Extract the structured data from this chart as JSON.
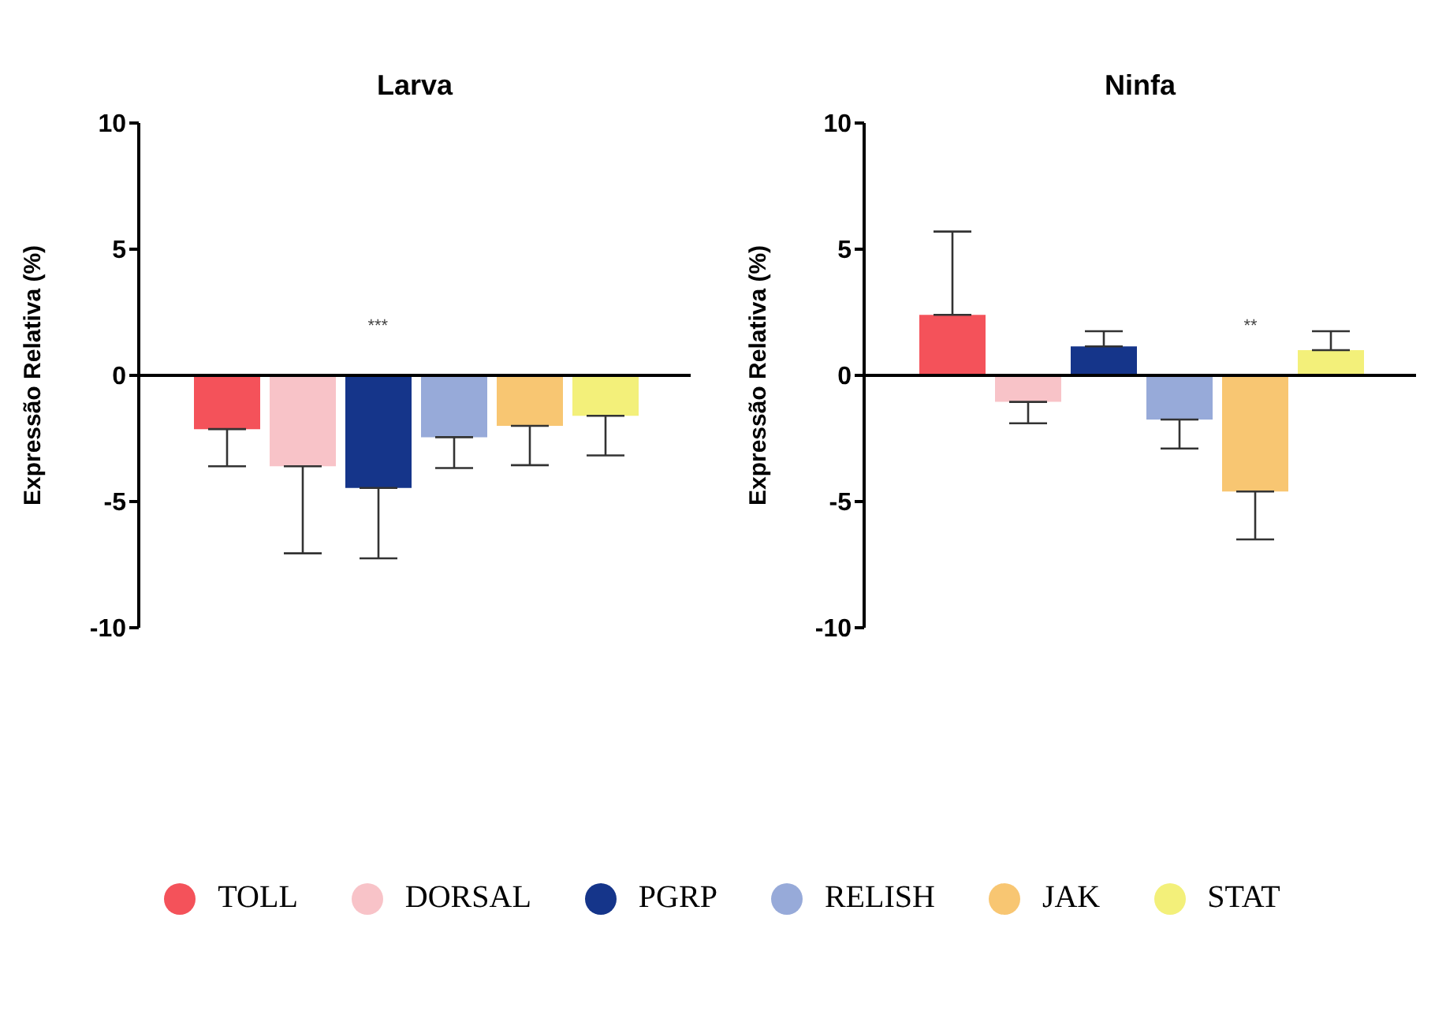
{
  "chart_data": [
    {
      "type": "bar",
      "title": "Larva",
      "ylabel": "Expressão Relativa (%)",
      "categories": [
        null
      ],
      "ylim": [
        -10,
        10
      ],
      "yticks": [
        -10,
        -5,
        0,
        5,
        10
      ],
      "legend": "bottom",
      "annotations": [
        "***"
      ],
      "series": [
        {
          "name": "TOLL",
          "color": "#f4525a",
          "values": [
            -2.13
          ],
          "errors": [
            [
              -3.6,
              -2.13
            ]
          ]
        },
        {
          "name": "DORSAL",
          "color": "#f8c3c8",
          "values": [
            -3.6
          ],
          "errors": [
            [
              -7.05,
              -3.6
            ]
          ]
        },
        {
          "name": "PGRP",
          "color": "#15358a",
          "values": [
            -4.46
          ],
          "errors": [
            [
              -7.25,
              -4.46
            ]
          ]
        },
        {
          "name": "RELISH",
          "color": "#97aad9",
          "values": [
            -2.45
          ],
          "errors": [
            [
              -3.67,
              -2.45
            ]
          ]
        },
        {
          "name": "JAK",
          "color": "#f8c672",
          "values": [
            -2.0
          ],
          "errors": [
            [
              -3.56,
              -2.0
            ]
          ]
        },
        {
          "name": "STAT",
          "color": "#f3f07a",
          "values": [
            -1.6
          ],
          "errors": [
            [
              -3.17,
              -1.6
            ]
          ]
        }
      ]
    },
    {
      "type": "bar",
      "title": "Ninfa",
      "ylabel": "Expressão Relativa (%)",
      "categories": [
        null
      ],
      "ylim": [
        -10,
        10
      ],
      "yticks": [
        -10,
        -5,
        0,
        5,
        10
      ],
      "annotations": [
        "**"
      ],
      "series": [
        {
          "color": "#f4525a",
          "values": [
            2.4
          ],
          "errors": [
            [
              2.4,
              5.7
            ]
          ]
        },
        {
          "color": "#f8c3c8",
          "values": [
            -1.05
          ],
          "errors": [
            [
              -1.9,
              -1.05
            ]
          ]
        },
        {
          "color": "#15358a",
          "values": [
            1.15
          ],
          "errors": [
            [
              1.15,
              1.75
            ]
          ]
        },
        {
          "color": "#97aad9",
          "values": [
            -1.75
          ],
          "errors": [
            [
              -2.9,
              -1.75
            ]
          ]
        },
        {
          "color": "#f8c672",
          "values": [
            -4.6
          ],
          "errors": [
            [
              -6.5,
              -4.6
            ]
          ]
        },
        {
          "color": "#f3f07a",
          "values": [
            1.0
          ],
          "errors": [
            [
              1.0,
              1.75
            ]
          ]
        }
      ]
    }
  ]
}
